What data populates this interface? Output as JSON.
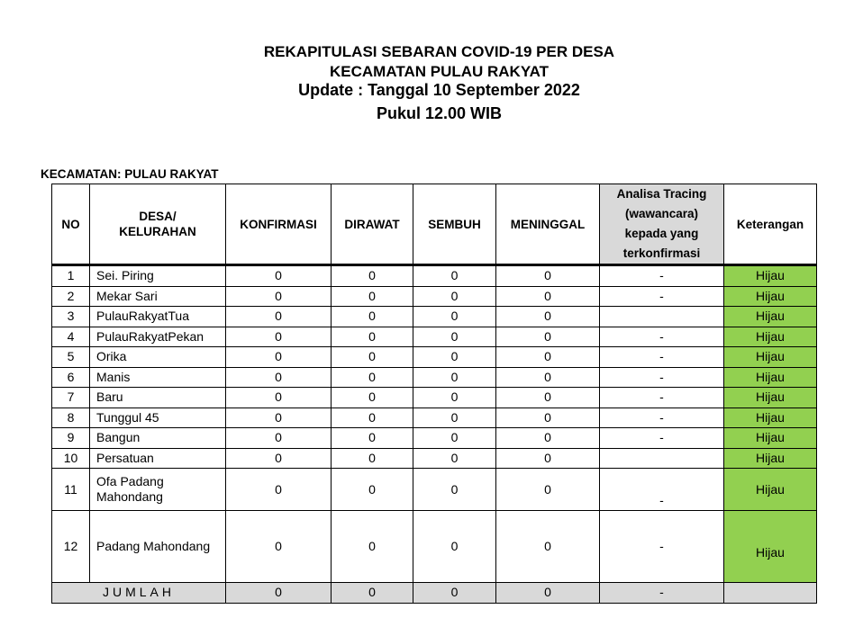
{
  "header": {
    "line1": "REKAPITULASI SEBARAN COVID-19 PER DESA",
    "line2": "KECAMATAN PULAU RAKYAT",
    "line3": "Update : Tanggal 10 September 2022",
    "line4": "Pukul 12.00 WIB"
  },
  "kecamatan_label": "KECAMATAN: PULAU RAKYAT",
  "table": {
    "columns": [
      "NO",
      "DESA/ KELURAHAN",
      "KONFIRMASI",
      "DIRAWAT",
      "SEMBUH",
      "MENINGGAL",
      "Analisa Tracing (wawancara) kepada yang terkonfirmasi",
      "Keterangan"
    ],
    "rows": [
      {
        "no": "1",
        "desa": "Sei. Piring",
        "konfirmasi": "0",
        "dirawat": "0",
        "sembuh": "0",
        "meninggal": "0",
        "tracing": "-",
        "keterangan": "Hijau"
      },
      {
        "no": "2",
        "desa": "Mekar Sari",
        "konfirmasi": "0",
        "dirawat": "0",
        "sembuh": "0",
        "meninggal": "0",
        "tracing": "-",
        "keterangan": "Hijau"
      },
      {
        "no": "3",
        "desa": "PulauRakyatTua",
        "konfirmasi": "0",
        "dirawat": "0",
        "sembuh": "0",
        "meninggal": "0",
        "tracing": "",
        "keterangan": "Hijau"
      },
      {
        "no": "4",
        "desa": "PulauRakyatPekan",
        "konfirmasi": "0",
        "dirawat": "0",
        "sembuh": "0",
        "meninggal": "0",
        "tracing": "-",
        "keterangan": "Hijau"
      },
      {
        "no": "5",
        "desa": "Orika",
        "konfirmasi": "0",
        "dirawat": "0",
        "sembuh": "0",
        "meninggal": "0",
        "tracing": "-",
        "keterangan": "Hijau"
      },
      {
        "no": "6",
        "desa": "Manis",
        "konfirmasi": "0",
        "dirawat": "0",
        "sembuh": "0",
        "meninggal": "0",
        "tracing": "-",
        "keterangan": "Hijau"
      },
      {
        "no": "7",
        "desa": "Baru",
        "konfirmasi": "0",
        "dirawat": "0",
        "sembuh": "0",
        "meninggal": "0",
        "tracing": "-",
        "keterangan": "Hijau"
      },
      {
        "no": "8",
        "desa": "Tunggul 45",
        "konfirmasi": "0",
        "dirawat": "0",
        "sembuh": "0",
        "meninggal": "0",
        "tracing": "-",
        "keterangan": "Hijau"
      },
      {
        "no": "9",
        "desa": "Bangun",
        "konfirmasi": "0",
        "dirawat": "0",
        "sembuh": "0",
        "meninggal": "0",
        "tracing": "-",
        "keterangan": "Hijau"
      },
      {
        "no": "10",
        "desa": "Persatuan",
        "konfirmasi": "0",
        "dirawat": "0",
        "sembuh": "0",
        "meninggal": "0",
        "tracing": "",
        "keterangan": "Hijau"
      },
      {
        "no": "11",
        "desa": "Ofa Padang Mahondang",
        "konfirmasi": "0",
        "dirawat": "0",
        "sembuh": "0",
        "meninggal": "0",
        "tracing": "-",
        "keterangan": "Hijau"
      },
      {
        "no": "12",
        "desa": "Padang Mahondang",
        "konfirmasi": "0",
        "dirawat": "0",
        "sembuh": "0",
        "meninggal": "0",
        "tracing": "-",
        "keterangan": "Hijau"
      }
    ],
    "total": {
      "label": "JUMLAH",
      "konfirmasi": "0",
      "dirawat": "0",
      "sembuh": "0",
      "meninggal": "0",
      "tracing": "-",
      "keterangan": ""
    }
  },
  "colors": {
    "hijau": "#92d050",
    "total_bg": "#d9d9d9"
  }
}
